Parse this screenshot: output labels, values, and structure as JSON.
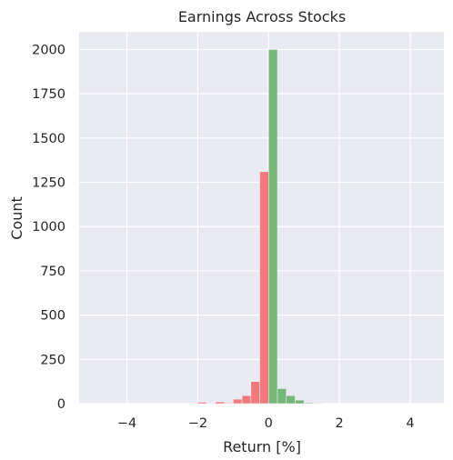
{
  "chart_data": {
    "type": "bar",
    "title": "Earnings Across Stocks",
    "xlabel": "Return [%]",
    "ylabel": "Count",
    "xlim": [
      -5.35,
      4.95
    ],
    "ylim": [
      0,
      2100
    ],
    "x_ticks": [
      -4,
      -2,
      0,
      2,
      4
    ],
    "x_tick_labels": [
      "−4",
      "−2",
      "0",
      "2",
      "4"
    ],
    "y_ticks": [
      0,
      250,
      500,
      750,
      1000,
      1250,
      1500,
      1750,
      2000
    ],
    "y_tick_labels": [
      "0",
      "250",
      "500",
      "750",
      "1000",
      "1250",
      "1500",
      "1750",
      "2000"
    ],
    "grid": true,
    "bin_width": 0.25,
    "colors": {
      "negative": "#f07373",
      "positive": "#6fb46f",
      "background": "#eaeaf2",
      "grid": "#ffffff"
    },
    "series": [
      {
        "color": "#f07373",
        "bins": [
          {
            "x0": -2.0,
            "x1": -1.75,
            "value": 8
          },
          {
            "x0": -1.75,
            "x1": -1.5,
            "value": 3
          },
          {
            "x0": -1.5,
            "x1": -1.25,
            "value": 10
          },
          {
            "x0": -1.25,
            "x1": -1.0,
            "value": 4
          },
          {
            "x0": -1.0,
            "x1": -0.75,
            "value": 25
          },
          {
            "x0": -0.75,
            "x1": -0.5,
            "value": 45
          },
          {
            "x0": -0.5,
            "x1": -0.25,
            "value": 125
          },
          {
            "x0": -0.25,
            "x1": 0.0,
            "value": 1310
          }
        ]
      },
      {
        "color": "#6fb46f",
        "bins": [
          {
            "x0": 0.0,
            "x1": 0.25,
            "value": 2000
          },
          {
            "x0": 0.25,
            "x1": 0.5,
            "value": 85
          },
          {
            "x0": 0.5,
            "x1": 0.75,
            "value": 45
          },
          {
            "x0": 0.75,
            "x1": 1.0,
            "value": 20
          },
          {
            "x0": 1.0,
            "x1": 1.25,
            "value": 5
          },
          {
            "x0": 1.25,
            "x1": 1.5,
            "value": 2
          }
        ]
      }
    ]
  }
}
